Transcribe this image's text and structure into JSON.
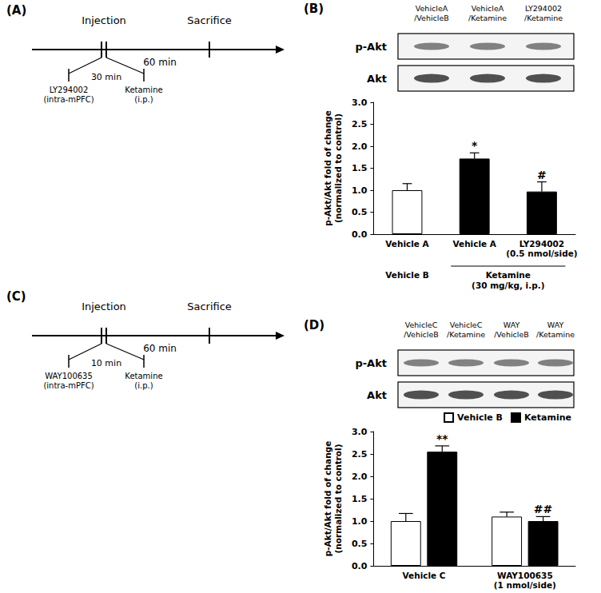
{
  "panels": {
    "A": {
      "label": "(A)",
      "timeline": {
        "injection": "Injection",
        "sacrifice": "Sacrifice",
        "after": "60 min",
        "before": "30 min",
        "first_drug": "LY294002\n(intra-mPFC)",
        "second_drug": "Ketamine\n(i.p.)"
      }
    },
    "B": {
      "label": "(B)",
      "blot": {
        "rows": [
          "p-Akt",
          "Akt"
        ],
        "lanes": [
          "VehicleA\n/VehicleB",
          "VehicleA\n/Ketamine",
          "LY294002\n/Ketamine"
        ]
      }
    },
    "C": {
      "label": "(C)",
      "timeline": {
        "injection": "Injection",
        "sacrifice": "Sacrifice",
        "after": "60 min",
        "before": "10 min",
        "first_drug": "WAY100635\n(intra-mPFC)",
        "second_drug": "Ketamine\n(i.p.)"
      }
    },
    "D": {
      "label": "(D)",
      "blot": {
        "rows": [
          "p-Akt",
          "Akt"
        ],
        "lanes": [
          "VehicleC\n/VehicleB",
          "VehicleC\n/Ketamine",
          "WAY\n/VehicleB",
          "WAY\n/Ketamine"
        ]
      }
    }
  },
  "chart_data": [
    {
      "type": "bar",
      "categories": [
        "Vehicle A",
        "Vehicle A",
        "LY294002\n(0.5 nmol/side)"
      ],
      "treatments": [
        "Vehicle B",
        "Ketamine\n(30 mg/kg, i.p.)",
        "Ketamine\n(30 mg/kg, i.p.)"
      ],
      "values": [
        1.0,
        1.72,
        0.97
      ],
      "errors": [
        0.15,
        0.13,
        0.22
      ],
      "significance": [
        null,
        "*",
        "#"
      ],
      "colors": [
        "#ffffff",
        "#000000",
        "#000000"
      ],
      "ylabel": "p-Akt/Akt fold of change\n(normalized to control)",
      "ylim": [
        0,
        3
      ],
      "yticks": [
        {
          "value": 0,
          "label": "0.0"
        },
        {
          "value": 0.5,
          "label": "0.5"
        },
        {
          "value": 1,
          "label": "1.0"
        },
        {
          "value": 1.5,
          "label": "1.5"
        },
        {
          "value": 2,
          "label": "2.0"
        },
        {
          "value": 2.5,
          "label": "2.5"
        },
        {
          "value": 3,
          "label": "3.0"
        }
      ],
      "grid": false
    },
    {
      "type": "bar",
      "categories": [
        "Vehicle C",
        "WAY100635\n(1 nmol/side)"
      ],
      "series": [
        {
          "name": "Vehicle B",
          "color": "#ffffff",
          "values": [
            1.0,
            1.1
          ],
          "errors": [
            0.17,
            0.1
          ],
          "significance": [
            null,
            null
          ]
        },
        {
          "name": "Ketamine",
          "color": "#000000",
          "values": [
            2.55,
            1.0
          ],
          "errors": [
            0.13,
            0.1
          ],
          "significance": [
            "**",
            "##"
          ]
        }
      ],
      "ylabel": "p-Akt/Akt fold of change\n(normalized to control)",
      "ylim": [
        0,
        3
      ],
      "yticks": [
        {
          "value": 0,
          "label": "0.0"
        },
        {
          "value": 0.5,
          "label": "0.5"
        },
        {
          "value": 1,
          "label": "1.0"
        },
        {
          "value": 1.5,
          "label": "1.5"
        },
        {
          "value": 2,
          "label": "2.0"
        },
        {
          "value": 2.5,
          "label": "2.5"
        },
        {
          "value": 3,
          "label": "3.0"
        }
      ],
      "legend": "upper right",
      "grid": false
    }
  ]
}
